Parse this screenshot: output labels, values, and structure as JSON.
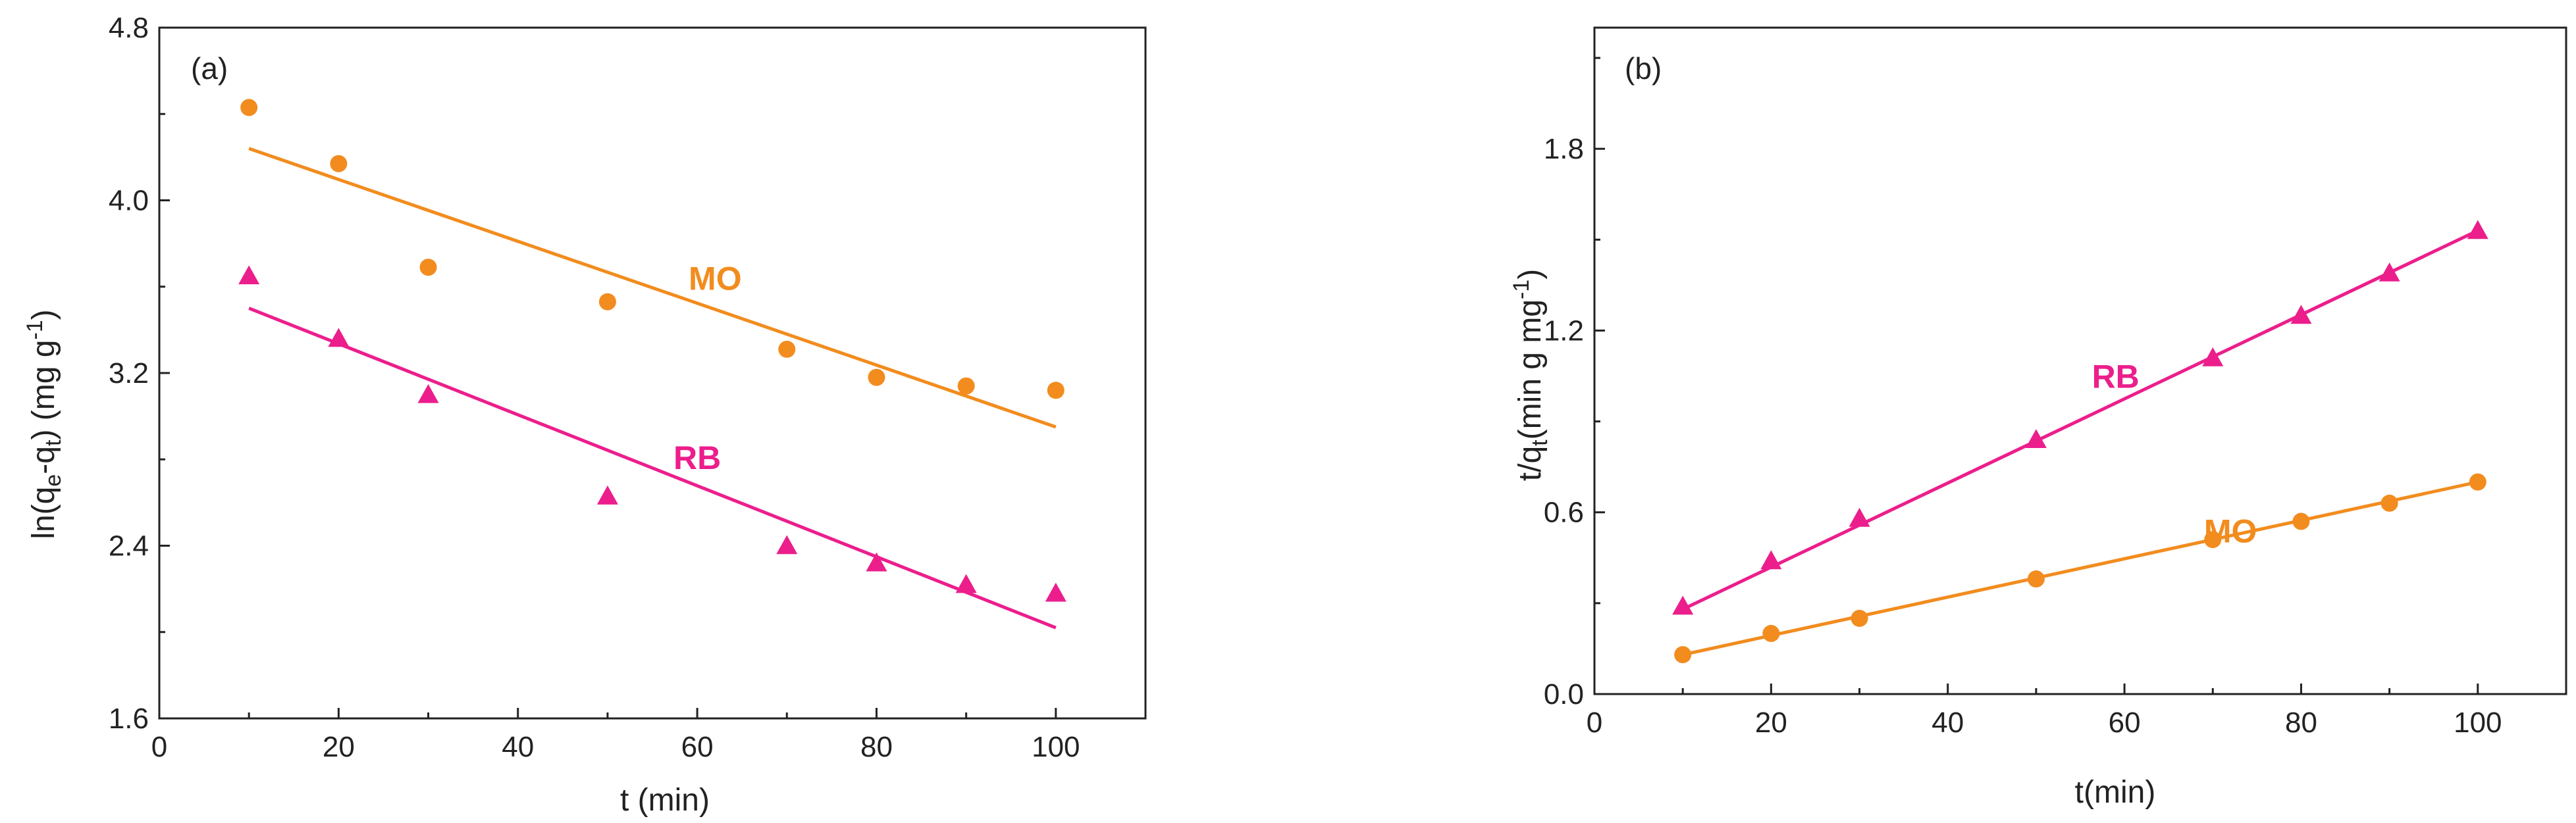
{
  "figure": {
    "colors": {
      "MO": "#F28C1E",
      "RB": "#EC1E8C",
      "axis": "#222222"
    }
  },
  "chart_data": [
    {
      "type": "scatter",
      "panel_label": "(a)",
      "xlabel": "t (min)",
      "ylabel_parts": {
        "main": "ln(q",
        "sub1": "e",
        "mid": "-q",
        "sub2": "t",
        "end": ") (mg g",
        "sup": "-1",
        "close": ")"
      },
      "xlim": [
        0,
        110
      ],
      "ylim": [
        1.6,
        4.8
      ],
      "xticks": [
        0,
        20,
        40,
        60,
        80,
        100
      ],
      "xtick_labels": [
        "0",
        "20",
        "40",
        "60",
        "80",
        "100"
      ],
      "yticks": [
        1.6,
        2.4,
        3.2,
        4.0,
        4.8
      ],
      "ytick_labels": [
        "1.6",
        "2.4",
        "3.2",
        "4.0",
        "4.8"
      ],
      "series": [
        {
          "name": "MO",
          "marker": "circle",
          "color": "#F28C1E",
          "x": [
            10,
            20,
            30,
            50,
            70,
            80,
            90,
            100
          ],
          "y": [
            4.43,
            4.17,
            3.69,
            3.53,
            3.31,
            3.18,
            3.14,
            3.12
          ],
          "fit": {
            "x": [
              10,
              100
            ],
            "y": [
              4.24,
              2.95
            ]
          },
          "label": "MO",
          "label_at": [
            62,
            3.64
          ]
        },
        {
          "name": "RB",
          "marker": "triangle",
          "color": "#EC1E8C",
          "x": [
            10,
            20,
            30,
            50,
            70,
            80,
            90,
            100
          ],
          "y": [
            3.65,
            3.36,
            3.1,
            2.63,
            2.4,
            2.32,
            2.22,
            2.18
          ],
          "fit": {
            "x": [
              10,
              100
            ],
            "y": [
              3.5,
              2.02
            ]
          },
          "label": "RB",
          "label_at": [
            60,
            2.81
          ]
        }
      ]
    },
    {
      "type": "scatter",
      "panel_label": "(b)",
      "xlabel": "t(min)",
      "ylabel_parts": {
        "main": "t/q",
        "sub": "t",
        "end": "(min g mg",
        "sup": "-1",
        "close": ")"
      },
      "xlim": [
        0,
        110
      ],
      "ylim": [
        0.0,
        2.2
      ],
      "xticks": [
        0,
        20,
        40,
        60,
        80,
        100
      ],
      "xtick_labels": [
        "0",
        "20",
        "40",
        "60",
        "80",
        "100"
      ],
      "yticks": [
        0.0,
        0.6,
        1.2,
        1.8
      ],
      "ytick_labels": [
        "0.0",
        "0.6",
        "1.2",
        "1.8"
      ],
      "series": [
        {
          "name": "RB",
          "marker": "triangle",
          "color": "#EC1E8C",
          "x": [
            10,
            20,
            30,
            50,
            70,
            80,
            90,
            100
          ],
          "y": [
            0.29,
            0.44,
            0.58,
            0.84,
            1.11,
            1.25,
            1.39,
            1.53
          ],
          "fit": {
            "x": [
              10,
              100
            ],
            "y": [
              0.28,
              1.53
            ]
          },
          "label": "RB",
          "label_at": [
            59,
            1.05
          ]
        },
        {
          "name": "MO",
          "marker": "circle",
          "color": "#F28C1E",
          "x": [
            10,
            20,
            30,
            50,
            70,
            80,
            90,
            100
          ],
          "y": [
            0.13,
            0.2,
            0.25,
            0.38,
            0.51,
            0.57,
            0.63,
            0.7
          ],
          "fit": {
            "x": [
              10,
              100
            ],
            "y": [
              0.13,
              0.7
            ]
          },
          "label": "MO",
          "label_at": [
            72,
            0.54
          ]
        }
      ]
    }
  ]
}
